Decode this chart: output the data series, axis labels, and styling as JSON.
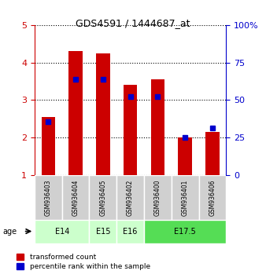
{
  "title": "GDS4591 / 1444687_at",
  "samples": [
    "GSM936403",
    "GSM936404",
    "GSM936405",
    "GSM936402",
    "GSM936400",
    "GSM936401",
    "GSM936406"
  ],
  "red_values": [
    2.55,
    4.3,
    4.25,
    3.4,
    3.55,
    2.0,
    2.15
  ],
  "blue_values": [
    2.42,
    3.55,
    3.55,
    3.1,
    3.1,
    2.0,
    2.25
  ],
  "ylim_left": [
    1,
    5
  ],
  "ylim_right": [
    0,
    100
  ],
  "yticks_left": [
    1,
    2,
    3,
    4,
    5
  ],
  "yticks_right": [
    0,
    25,
    50,
    75,
    100
  ],
  "age_groups": [
    {
      "label": "E14",
      "start": 0,
      "end": 2,
      "color": "#ccffcc"
    },
    {
      "label": "E15",
      "start": 2,
      "end": 3,
      "color": "#ccffcc"
    },
    {
      "label": "E16",
      "start": 3,
      "end": 4,
      "color": "#ccffcc"
    },
    {
      "label": "E17.5",
      "start": 4,
      "end": 7,
      "color": "#55dd55"
    }
  ],
  "red_color": "#cc0000",
  "blue_color": "#0000cc",
  "left_tick_color": "#cc0000",
  "right_tick_color": "#0000cc",
  "sample_box_color": "#d0d0d0",
  "legend1": "transformed count",
  "legend2": "percentile rank within the sample"
}
